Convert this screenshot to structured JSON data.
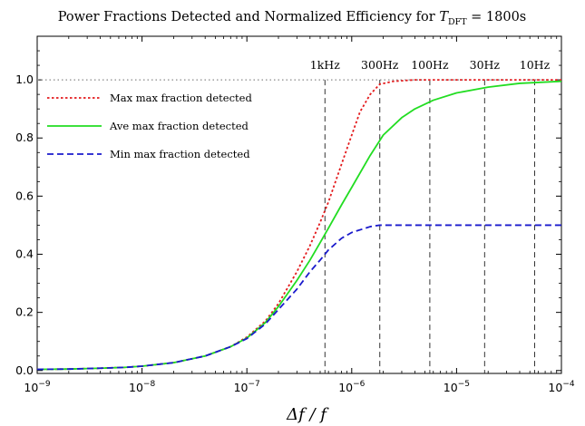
{
  "chart_data": {
    "type": "line",
    "title": {
      "prefix": "Power Fractions Detected and Normalized Efficiency for ",
      "var": "T",
      "var_sub": "DFT",
      "suffix": " = 1800s"
    },
    "xlabel": "Δf / f",
    "ylabel": "",
    "x_scale": "log",
    "xlim": [
      1e-09,
      0.0001
    ],
    "ylim": [
      -0.01,
      1.15
    ],
    "x_ticks": [
      {
        "value": 1e-09,
        "base": "10",
        "exp": "−9"
      },
      {
        "value": 1e-08,
        "base": "10",
        "exp": "−8"
      },
      {
        "value": 1e-07,
        "base": "10",
        "exp": "−7"
      },
      {
        "value": 1e-06,
        "base": "10",
        "exp": "−6"
      },
      {
        "value": 1e-05,
        "base": "10",
        "exp": "−5"
      },
      {
        "value": 0.0001,
        "base": "10",
        "exp": "−4"
      }
    ],
    "y_ticks": [
      {
        "value": 0.0,
        "label": "0.0"
      },
      {
        "value": 0.2,
        "label": "0.2"
      },
      {
        "value": 0.4,
        "label": "0.4"
      },
      {
        "value": 0.6,
        "label": "0.6"
      },
      {
        "value": 0.8,
        "label": "0.8"
      },
      {
        "value": 1.0,
        "label": "1.0"
      }
    ],
    "reference_line": {
      "y": 1.0,
      "color": "#888888",
      "style": "dotted"
    },
    "vertical_markers": [
      {
        "x": 5.556e-07,
        "label": "1kHz"
      },
      {
        "x": 1.852e-06,
        "label": "300Hz"
      },
      {
        "x": 5.556e-06,
        "label": "100Hz"
      },
      {
        "x": 1.852e-05,
        "label": "30Hz"
      },
      {
        "x": 5.556e-05,
        "label": "10Hz"
      }
    ],
    "legend_position": "top-left",
    "series": [
      {
        "name": "Max max fraction detected",
        "color": "#e31a1c",
        "style": "dotted",
        "points": [
          [
            1e-09,
            0.004
          ],
          [
            2e-09,
            0.005
          ],
          [
            4e-09,
            0.008
          ],
          [
            7e-09,
            0.011
          ],
          [
            1e-08,
            0.015
          ],
          [
            2e-08,
            0.027
          ],
          [
            4e-08,
            0.05
          ],
          [
            7e-08,
            0.082
          ],
          [
            1e-07,
            0.115
          ],
          [
            1.5e-07,
            0.17
          ],
          [
            2e-07,
            0.23
          ],
          [
            3e-07,
            0.34
          ],
          [
            4e-07,
            0.43
          ],
          [
            5e-07,
            0.51
          ],
          [
            6e-07,
            0.58
          ],
          [
            8e-07,
            0.71
          ],
          [
            1e-06,
            0.81
          ],
          [
            1.2e-06,
            0.89
          ],
          [
            1.5e-06,
            0.95
          ],
          [
            1.85e-06,
            0.985
          ],
          [
            2.5e-06,
            0.995
          ],
          [
            4e-06,
            1.0
          ],
          [
            1e-05,
            1.0
          ],
          [
            3e-05,
            1.0
          ],
          [
            0.0001,
            1.0
          ]
        ]
      },
      {
        "name": "Ave max fraction detected",
        "color": "#22dd22",
        "style": "solid",
        "points": [
          [
            1e-09,
            0.004
          ],
          [
            2e-09,
            0.005
          ],
          [
            4e-09,
            0.008
          ],
          [
            7e-09,
            0.011
          ],
          [
            1e-08,
            0.015
          ],
          [
            2e-08,
            0.027
          ],
          [
            4e-08,
            0.05
          ],
          [
            7e-08,
            0.082
          ],
          [
            1e-07,
            0.112
          ],
          [
            1.5e-07,
            0.165
          ],
          [
            2e-07,
            0.22
          ],
          [
            3e-07,
            0.31
          ],
          [
            4e-07,
            0.38
          ],
          [
            5e-07,
            0.44
          ],
          [
            6e-07,
            0.49
          ],
          [
            8e-07,
            0.57
          ],
          [
            1e-06,
            0.63
          ],
          [
            1.5e-06,
            0.74
          ],
          [
            2e-06,
            0.81
          ],
          [
            3e-06,
            0.87
          ],
          [
            4e-06,
            0.9
          ],
          [
            6e-06,
            0.93
          ],
          [
            1e-05,
            0.955
          ],
          [
            2e-05,
            0.975
          ],
          [
            4e-05,
            0.988
          ],
          [
            0.0001,
            0.995
          ]
        ]
      },
      {
        "name": "Min max fraction detected",
        "color": "#1a1acc",
        "style": "dashed",
        "points": [
          [
            1e-09,
            0.004
          ],
          [
            2e-09,
            0.005
          ],
          [
            4e-09,
            0.008
          ],
          [
            7e-09,
            0.011
          ],
          [
            1e-08,
            0.015
          ],
          [
            2e-08,
            0.027
          ],
          [
            4e-08,
            0.05
          ],
          [
            7e-08,
            0.082
          ],
          [
            1e-07,
            0.11
          ],
          [
            1.5e-07,
            0.16
          ],
          [
            2e-07,
            0.21
          ],
          [
            3e-07,
            0.28
          ],
          [
            4e-07,
            0.34
          ],
          [
            5e-07,
            0.38
          ],
          [
            6e-07,
            0.415
          ],
          [
            8e-07,
            0.455
          ],
          [
            1e-06,
            0.475
          ],
          [
            1.5e-06,
            0.495
          ],
          [
            1.85e-06,
            0.5
          ],
          [
            3e-06,
            0.5
          ],
          [
            1e-05,
            0.5
          ],
          [
            0.0001,
            0.5
          ]
        ]
      }
    ]
  }
}
